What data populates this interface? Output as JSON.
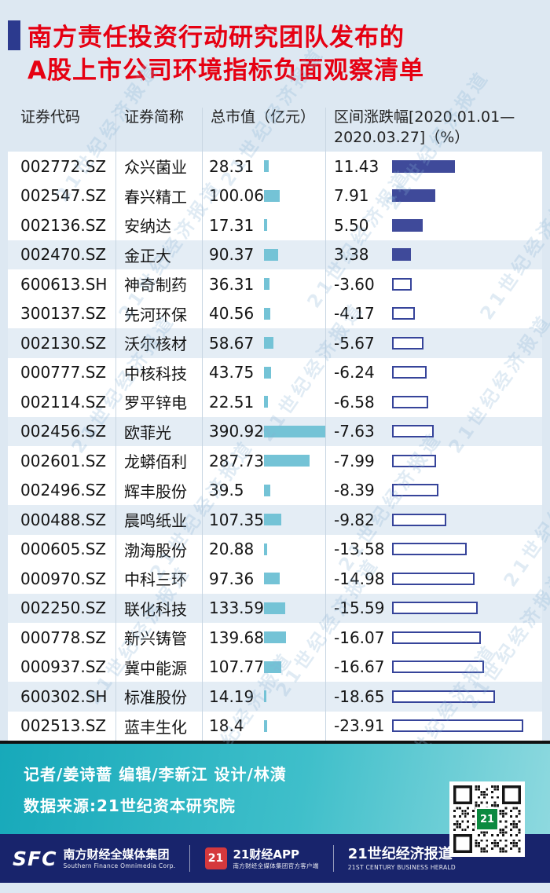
{
  "colors": {
    "title_red": "#e60012",
    "cap_bar_teal": "#74c3d6",
    "positive_bar_navy": "#3f4a9a",
    "negative_bar_border": "#36449a",
    "band_teal": "#2ab7c4",
    "band_navy": "#18246c",
    "row_shaded": "#e4edf5",
    "page_bg": "#dde8f2"
  },
  "watermark": "21世纪经济报道",
  "title": {
    "line1": "南方责任投资行动研究团队发布的",
    "line2": "A股上市公司环境指标负面观察清单"
  },
  "table": {
    "headers": {
      "code": "证券代码",
      "name": "证券简称",
      "cap": "总市值（亿元）",
      "pct_line1": "区间涨跌幅[2020.01.01—",
      "pct_line2": "2020.03.27]（%）"
    },
    "rows": [
      {
        "code": "002772.SZ",
        "name": "众兴菌业",
        "cap": "28.31",
        "pct": "11.43"
      },
      {
        "code": "002547.SZ",
        "name": "春兴精工",
        "cap": "100.06",
        "pct": "7.91"
      },
      {
        "code": "002136.SZ",
        "name": "安纳达",
        "cap": "17.31",
        "pct": "5.50"
      },
      {
        "code": "002470.SZ",
        "name": "金正大",
        "cap": "90.37",
        "pct": "3.38"
      },
      {
        "code": "600613.SH",
        "name": "神奇制药",
        "cap": "36.31",
        "pct": "-3.60"
      },
      {
        "code": "300137.SZ",
        "name": "先河环保",
        "cap": "40.56",
        "pct": "-4.17"
      },
      {
        "code": "002130.SZ",
        "name": "沃尔核材",
        "cap": "58.67",
        "pct": "-5.67"
      },
      {
        "code": "000777.SZ",
        "name": "中核科技",
        "cap": "43.75",
        "pct": "-6.24"
      },
      {
        "code": "002114.SZ",
        "name": "罗平锌电",
        "cap": "22.51",
        "pct": "-6.58"
      },
      {
        "code": "002456.SZ",
        "name": "欧菲光",
        "cap": "390.92",
        "pct": "-7.63"
      },
      {
        "code": "002601.SZ",
        "name": "龙蟒佰利",
        "cap": "287.73",
        "pct": "-7.99"
      },
      {
        "code": "002496.SZ",
        "name": "辉丰股份",
        "cap": "39.5",
        "pct": "-8.39"
      },
      {
        "code": "000488.SZ",
        "name": "晨鸣纸业",
        "cap": "107.35",
        "pct": "-9.82"
      },
      {
        "code": "000605.SZ",
        "name": "渤海股份",
        "cap": "20.88",
        "pct": "-13.58"
      },
      {
        "code": "000970.SZ",
        "name": "中科三环",
        "cap": "97.36",
        "pct": "-14.98"
      },
      {
        "code": "002250.SZ",
        "name": "联化科技",
        "cap": "133.59",
        "pct": "-15.59"
      },
      {
        "code": "000778.SZ",
        "name": "新兴铸管",
        "cap": "139.68",
        "pct": "-16.07"
      },
      {
        "code": "000937.SZ",
        "name": "冀中能源",
        "cap": "107.77",
        "pct": "-16.67"
      },
      {
        "code": "600302.SH",
        "name": "标准股份",
        "cap": "14.19",
        "pct": "-18.65"
      },
      {
        "code": "002513.SZ",
        "name": "蓝丰生化",
        "cap": "18.4",
        "pct": "-23.91"
      }
    ]
  },
  "chart_data": {
    "type": "table",
    "title": "南方责任投资行动研究团队发布的A股上市公司环境指标负面观察清单",
    "columns": [
      "证券代码",
      "证券简称",
      "总市值（亿元）",
      "区间涨跌幅[2020.01.01—2020.03.27]（%）"
    ],
    "rows": [
      [
        "002772.SZ",
        "众兴菌业",
        28.31,
        11.43
      ],
      [
        "002547.SZ",
        "春兴精工",
        100.06,
        7.91
      ],
      [
        "002136.SZ",
        "安纳达",
        17.31,
        5.5
      ],
      [
        "002470.SZ",
        "金正大",
        90.37,
        3.38
      ],
      [
        "600613.SH",
        "神奇制药",
        36.31,
        -3.6
      ],
      [
        "300137.SZ",
        "先河环保",
        40.56,
        -4.17
      ],
      [
        "002130.SZ",
        "沃尔核材",
        58.67,
        -5.67
      ],
      [
        "000777.SZ",
        "中核科技",
        43.75,
        -6.24
      ],
      [
        "002114.SZ",
        "罗平锌电",
        22.51,
        -6.58
      ],
      [
        "002456.SZ",
        "欧菲光",
        390.92,
        -7.63
      ],
      [
        "002601.SZ",
        "龙蟒佰利",
        287.73,
        -7.99
      ],
      [
        "002496.SZ",
        "辉丰股份",
        39.5,
        -8.39
      ],
      [
        "000488.SZ",
        "晨鸣纸业",
        107.35,
        -9.82
      ],
      [
        "000605.SZ",
        "渤海股份",
        20.88,
        -13.58
      ],
      [
        "000970.SZ",
        "中科三环",
        97.36,
        -14.98
      ],
      [
        "002250.SZ",
        "联化科技",
        133.59,
        -15.59
      ],
      [
        "000778.SZ",
        "新兴铸管",
        139.68,
        -16.07
      ],
      [
        "000937.SZ",
        "冀中能源",
        107.77,
        -16.67
      ],
      [
        "600302.SH",
        "标准股份",
        14.19,
        -18.65
      ],
      [
        "002513.SZ",
        "蓝丰生化",
        18.4,
        -23.91
      ]
    ],
    "bar_columns": [
      {
        "name": "总市值（亿元）",
        "style": "solid teal bar, length proportional to value"
      },
      {
        "name": "区间涨跌幅（%）",
        "style": "navy filled bar when positive, navy outlined hollow bar when negative, length proportional to absolute value"
      }
    ]
  },
  "footer": {
    "credits": "记者/姜诗蔷  编辑/李新江  设计/林潢",
    "source": "数据来源:21世纪资本研究院",
    "brands": {
      "sfc": {
        "logo": "SFC",
        "name": "南方财经全媒体集团",
        "sub": "Southern Finance Omnimedia Corp."
      },
      "app": {
        "logo": "21",
        "name": "21财经APP",
        "sub": "南方财经全媒体集团官方客户端"
      },
      "herald": {
        "name": "21世纪经济报道",
        "sub": "21ST CENTURY BUSINESS HERALD"
      }
    },
    "qr_badge": "21"
  }
}
